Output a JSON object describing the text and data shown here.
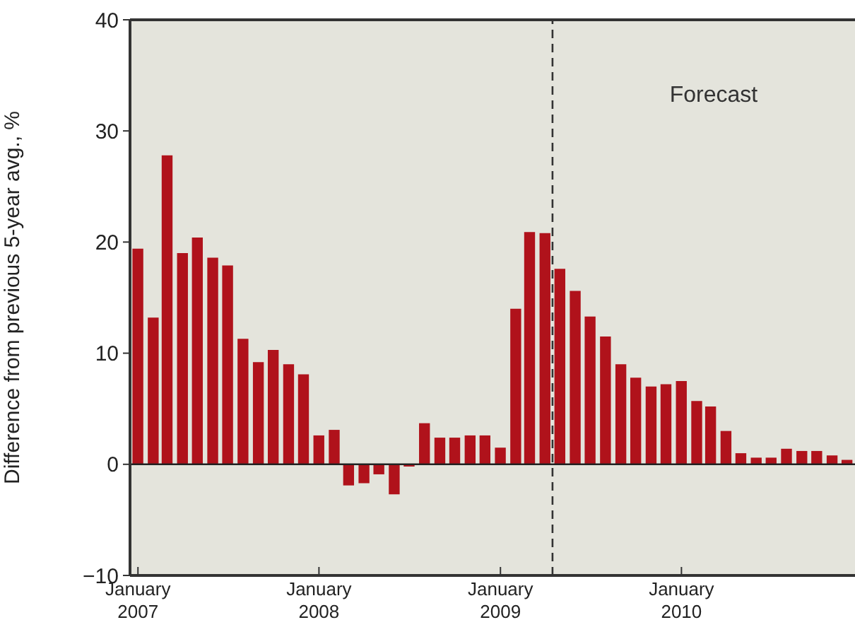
{
  "chart_data": {
    "type": "bar",
    "ylabel": "Difference from previous 5-year avg., %",
    "x": [
      "2007-01",
      "2007-02",
      "2007-03",
      "2007-04",
      "2007-05",
      "2007-06",
      "2007-07",
      "2007-08",
      "2007-09",
      "2007-10",
      "2007-11",
      "2007-12",
      "2008-01",
      "2008-02",
      "2008-03",
      "2008-04",
      "2008-05",
      "2008-06",
      "2008-07",
      "2008-08",
      "2008-09",
      "2008-10",
      "2008-11",
      "2008-12",
      "2009-01",
      "2009-02",
      "2009-03",
      "2009-04",
      "2009-05",
      "2009-06",
      "2009-07",
      "2009-08",
      "2009-09",
      "2009-10",
      "2009-11",
      "2009-12",
      "2010-01",
      "2010-02",
      "2010-03",
      "2010-04",
      "2010-05",
      "2010-06",
      "2010-07",
      "2010-08",
      "2010-09",
      "2010-10",
      "2010-11",
      "2010-12"
    ],
    "values": [
      19.4,
      13.2,
      27.8,
      19.0,
      20.4,
      18.6,
      17.9,
      11.3,
      9.2,
      10.3,
      9.0,
      8.1,
      2.6,
      3.1,
      -1.9,
      -1.7,
      -0.9,
      -2.7,
      -0.2,
      3.7,
      2.4,
      2.4,
      2.6,
      2.6,
      1.5,
      14.0,
      20.9,
      20.8,
      17.6,
      15.6,
      13.3,
      11.5,
      9.0,
      7.8,
      7.0,
      7.2,
      7.5,
      5.7,
      5.2,
      3.0,
      1.0,
      0.6,
      0.6,
      1.4,
      1.2,
      1.2,
      0.8,
      0.4
    ],
    "color": "#b0121b",
    "xlim": [
      "2006-12-16",
      "2010-12-17"
    ],
    "xticks": [
      {
        "value": "2007-01",
        "label": "January 2007"
      },
      {
        "value": "2008-01",
        "label": "January 2008"
      },
      {
        "value": "2009-01",
        "label": "January 2009"
      },
      {
        "value": "2010-01",
        "label": "January 2010"
      }
    ],
    "ylim": [
      -10,
      40
    ],
    "yticks": [
      -10,
      0,
      10,
      20,
      30,
      40
    ],
    "ref_lines": [
      {
        "axis": "x",
        "value": "2009-04-16",
        "line_style": "dashed",
        "color": "#333333"
      },
      {
        "axis": "y",
        "value": 0,
        "color": "#222222"
      }
    ],
    "annotations": [
      "Forecast"
    ]
  }
}
